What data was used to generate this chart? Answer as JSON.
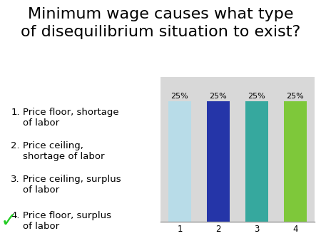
{
  "title": "Minimum wage causes what type\nof disequilibrium situation to exist?",
  "title_fontsize": 16,
  "categories": [
    "1",
    "2",
    "3",
    "4"
  ],
  "values": [
    25,
    25,
    25,
    25
  ],
  "bar_colors": [
    "#b8dce8",
    "#2535a8",
    "#36a89e",
    "#7ec83a"
  ],
  "pct_labels": [
    "25%",
    "25%",
    "25%",
    "25%"
  ],
  "options": [
    "Price floor, shortage\nof labor",
    "Price ceiling,\nshortage of labor",
    "Price ceiling, surplus\nof labor",
    "Price floor, surplus\nof labor"
  ],
  "correct_index": 3,
  "background_color": "#ffffff",
  "text_color": "#000000",
  "check_color": "#22cc22"
}
